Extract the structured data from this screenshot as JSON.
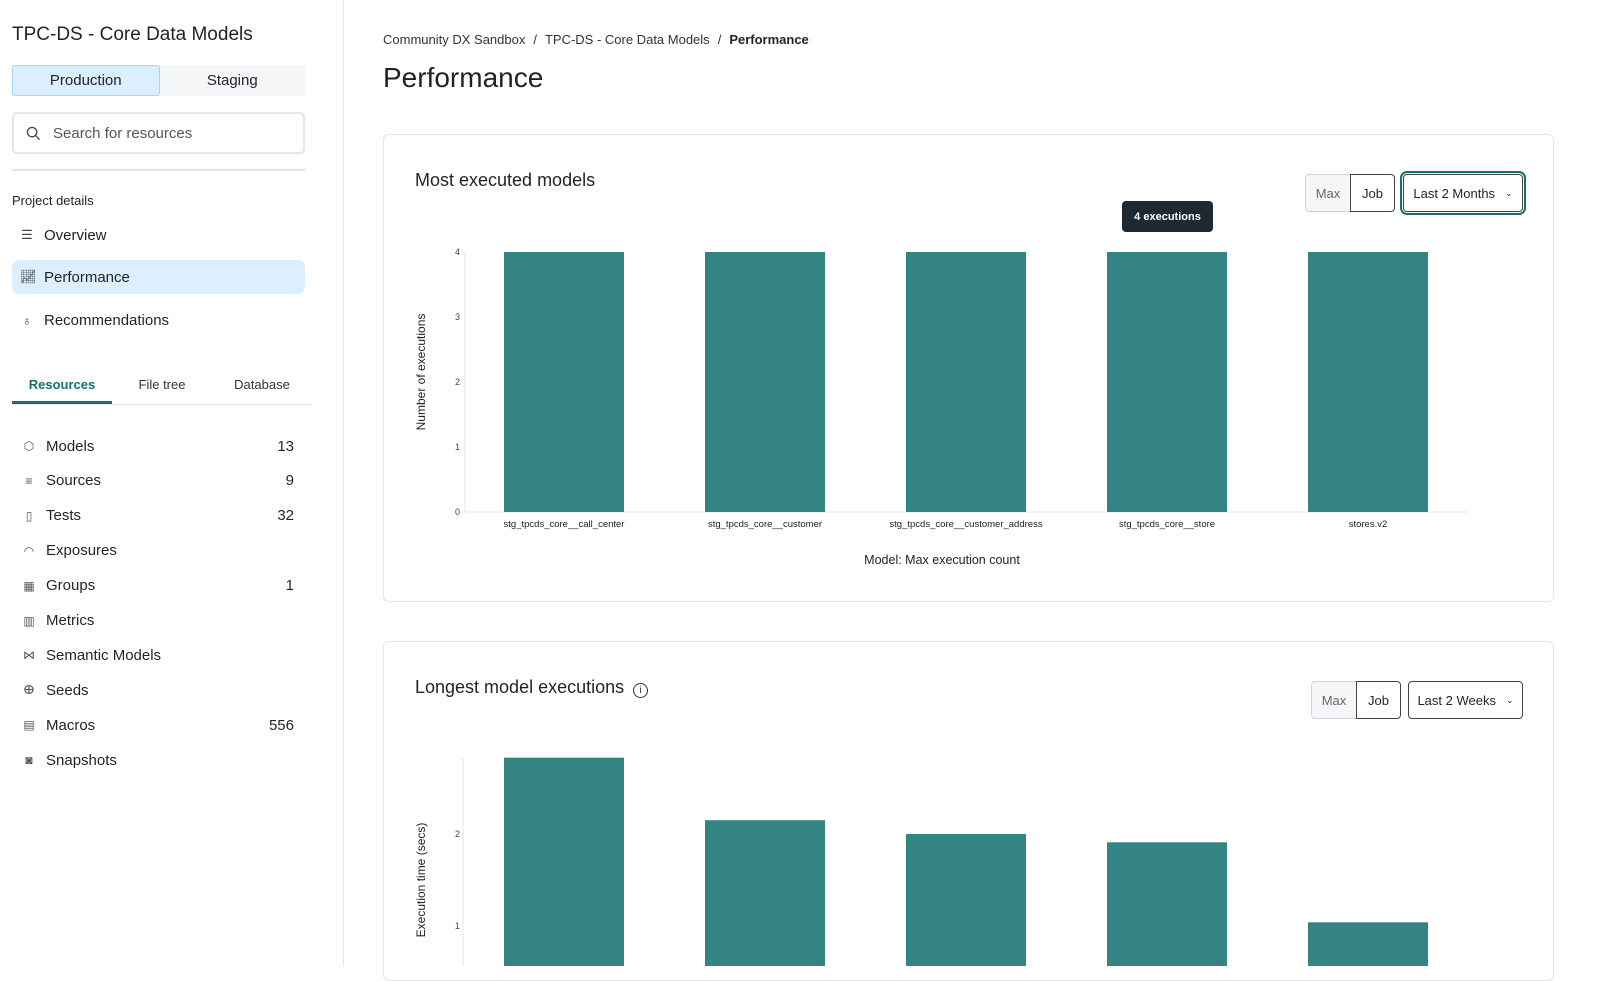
{
  "sidebar": {
    "project_title": "TPC-DS - Core Data Models",
    "environments": [
      "Production",
      "Staging"
    ],
    "search_placeholder": "Search for resources",
    "project_details_label": "Project details",
    "nav": [
      {
        "label": "Overview",
        "icon": "list-icon"
      },
      {
        "label": "Performance",
        "icon": "line-chart-icon"
      },
      {
        "label": "Recommendations",
        "icon": "lightbulb-icon"
      }
    ],
    "resource_tabs": [
      "Resources",
      "File tree",
      "Database"
    ],
    "resources": [
      {
        "label": "Models",
        "count": "13",
        "icon": "cube-icon"
      },
      {
        "label": "Sources",
        "count": "9",
        "icon": "database-icon"
      },
      {
        "label": "Tests",
        "count": "32",
        "icon": "clipboard-icon"
      },
      {
        "label": "Exposures",
        "count": "",
        "icon": "gauge-icon"
      },
      {
        "label": "Groups",
        "count": "1",
        "icon": "grid-icon"
      },
      {
        "label": "Metrics",
        "count": "",
        "icon": "bar-chart-icon"
      },
      {
        "label": "Semantic Models",
        "count": "",
        "icon": "graph-icon"
      },
      {
        "label": "Seeds",
        "count": "",
        "icon": "sprout-icon"
      },
      {
        "label": "Macros",
        "count": "556",
        "icon": "file-icon"
      },
      {
        "label": "Snapshots",
        "count": "",
        "icon": "camera-icon"
      }
    ]
  },
  "breadcrumb": [
    "Community DX Sandbox",
    "TPC-DS - Core Data Models",
    "Performance"
  ],
  "page_title": "Performance",
  "accent": "#358484",
  "cards": [
    {
      "title": "Most executed models",
      "toggle": [
        "Max",
        "Job"
      ],
      "range": "Last 2 Months",
      "tooltip": "4 executions"
    },
    {
      "title": "Longest model executions",
      "toggle": [
        "Max",
        "Job"
      ],
      "range": "Last 2 Weeks"
    }
  ],
  "chart_data": [
    {
      "type": "bar",
      "title": "Most executed models",
      "xlabel": "Model: Max execution count",
      "ylabel": "Number of executions",
      "categories": [
        "stg_tpcds_core__call_center",
        "stg_tpcds_core__customer",
        "stg_tpcds_core__customer_address",
        "stg_tpcds_core__store",
        "stores.v2"
      ],
      "values": [
        4,
        4,
        4,
        4,
        4
      ],
      "ylim": [
        0,
        4
      ],
      "yticks": [
        "0",
        "1",
        "2",
        "3",
        "4"
      ]
    },
    {
      "type": "bar",
      "title": "Longest model executions",
      "ylabel": "Execution time (secs)",
      "values": [
        2.83,
        2.15,
        2.0,
        1.91,
        1.04
      ],
      "yticks": [
        "1",
        "2"
      ]
    }
  ]
}
